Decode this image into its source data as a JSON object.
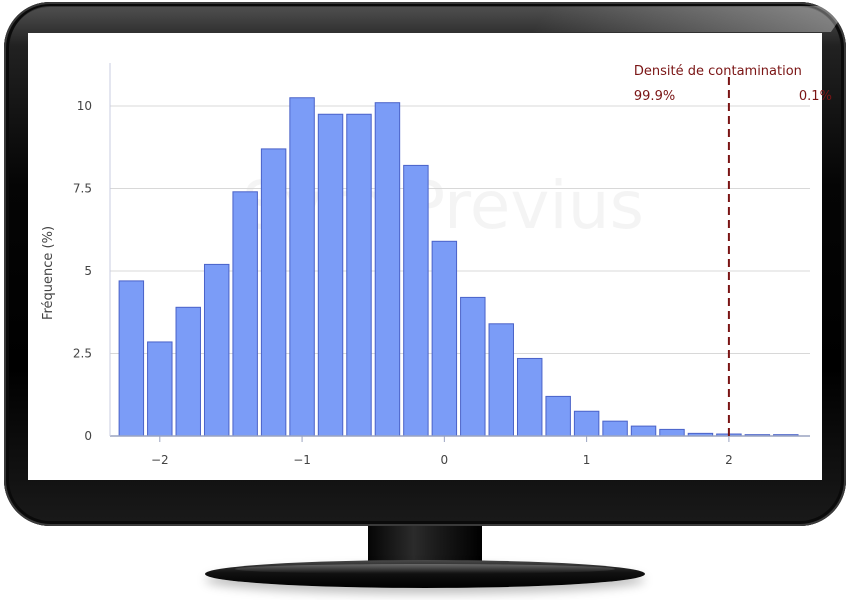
{
  "watermark": "Sym'Previus",
  "chart_data": {
    "type": "bar",
    "ylabel": "Fréquence (%)",
    "xlabel": "",
    "ylim": [
      0,
      11
    ],
    "xlim": [
      -2.35,
      2.57
    ],
    "y_ticks": [
      0,
      2.5,
      5,
      7.5,
      10
    ],
    "y_tick_labels": [
      "0",
      "2.5",
      "5",
      "7.5",
      "10"
    ],
    "x_ticks": [
      -2,
      -1,
      0,
      1,
      2
    ],
    "x_tick_labels": [
      "−2",
      "−1",
      "0",
      "1",
      "2"
    ],
    "grid": true,
    "bar_color": "#7b9cf7",
    "bar_edge_color": "#4a62c8",
    "bar_width": 0.2,
    "bins": [
      {
        "x": -2.2,
        "value": 4.7
      },
      {
        "x": -2.0,
        "value": 2.85
      },
      {
        "x": -1.8,
        "value": 3.9
      },
      {
        "x": -1.6,
        "value": 5.2
      },
      {
        "x": -1.4,
        "value": 7.4
      },
      {
        "x": -1.2,
        "value": 8.7
      },
      {
        "x": -1.0,
        "value": 10.25
      },
      {
        "x": -0.8,
        "value": 9.75
      },
      {
        "x": -0.6,
        "value": 9.75
      },
      {
        "x": -0.4,
        "value": 10.1
      },
      {
        "x": -0.2,
        "value": 8.2
      },
      {
        "x": 0.0,
        "value": 5.9
      },
      {
        "x": 0.2,
        "value": 4.2
      },
      {
        "x": 0.4,
        "value": 3.4
      },
      {
        "x": 0.6,
        "value": 2.35
      },
      {
        "x": 0.8,
        "value": 1.2
      },
      {
        "x": 1.0,
        "value": 0.75
      },
      {
        "x": 1.2,
        "value": 0.45
      },
      {
        "x": 1.4,
        "value": 0.3
      },
      {
        "x": 1.6,
        "value": 0.2
      },
      {
        "x": 1.8,
        "value": 0.08
      },
      {
        "x": 2.0,
        "value": 0.06
      },
      {
        "x": 2.2,
        "value": 0.04
      },
      {
        "x": 2.4,
        "value": 0.04
      }
    ],
    "threshold": {
      "x": 2.0,
      "label": "Densité de contamination",
      "left_percent": "99.9%",
      "right_percent": "0.1%",
      "color": "#7a1414"
    }
  }
}
